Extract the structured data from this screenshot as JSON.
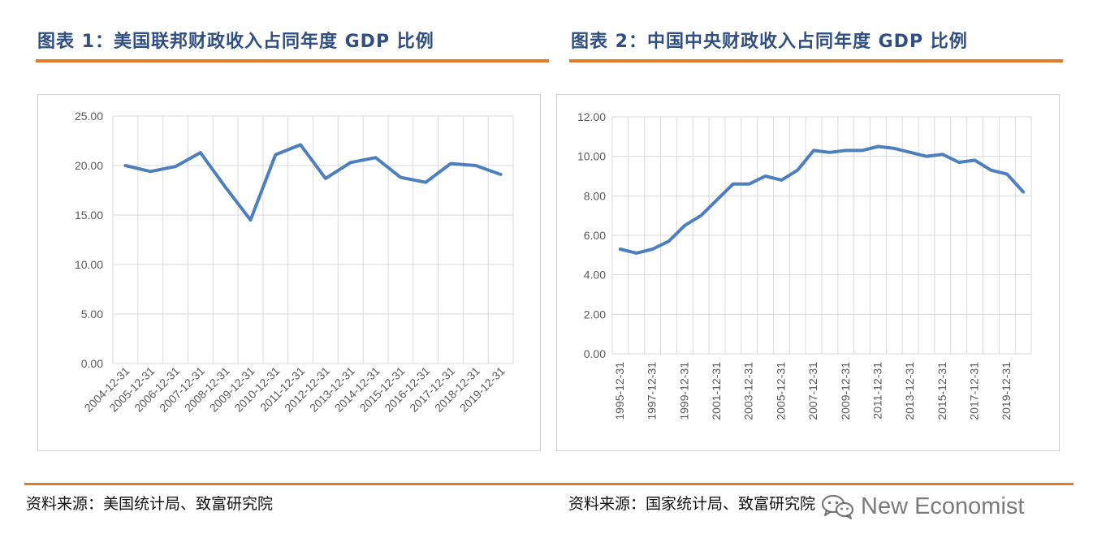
{
  "figures": [
    {
      "title": "图表 1：美国联邦财政收入占同年度 GDP 比例",
      "source": "资料来源：美国统计局、致富研究院"
    },
    {
      "title": "图表 2：中国中央财政收入占同年度 GDP 比例",
      "source": "资料来源：国家统计局、致富研究院"
    }
  ],
  "watermark": "New Economist",
  "colors": {
    "line": "#4e7fbd",
    "accent": "#e07b2c",
    "title": "#2f4f82",
    "grid": "#d9d9d9"
  },
  "chart_data": [
    {
      "type": "line",
      "title": "美国联邦财政收入占同年度 GDP 比例",
      "xlabel": "",
      "ylabel": "",
      "ylim": [
        0,
        25
      ],
      "y_ticks": [
        "0.00",
        "5.00",
        "10.00",
        "15.00",
        "20.00",
        "25.00"
      ],
      "categories": [
        "2004-12-31",
        "2005-12-31",
        "2006-12-31",
        "2007-12-31",
        "2008-12-31",
        "2009-12-31",
        "2010-12-31",
        "2011-12-31",
        "2012-12-31",
        "2013-12-31",
        "2014-12-31",
        "2015-12-31",
        "2016-12-31",
        "2017-12-31",
        "2018-12-31",
        "2019-12-31"
      ],
      "x_tick_labels": [
        "2004-12-31",
        "2005-12-31",
        "2006-12-31",
        "2007-12-31",
        "2008-12-31",
        "2009-12-31",
        "2010-12-31",
        "2011-12-31",
        "2012-12-31",
        "2013-12-31",
        "2014-12-31",
        "2015-12-31",
        "2016-12-31",
        "2017-12-31",
        "2018-12-31",
        "2019-12-31"
      ],
      "values": [
        20.0,
        19.4,
        19.9,
        21.3,
        17.8,
        14.5,
        21.1,
        22.1,
        18.7,
        20.3,
        20.8,
        18.8,
        18.3,
        20.2,
        20.0,
        19.1
      ],
      "grid": true,
      "legend": "none"
    },
    {
      "type": "line",
      "title": "中国中央财政收入占同年度 GDP 比例",
      "xlabel": "",
      "ylabel": "",
      "ylim": [
        0,
        12
      ],
      "y_ticks": [
        "0.00",
        "2.00",
        "4.00",
        "6.00",
        "8.00",
        "10.00",
        "12.00"
      ],
      "categories": [
        "1995-12-31",
        "1996-12-31",
        "1997-12-31",
        "1998-12-31",
        "1999-12-31",
        "2000-12-31",
        "2001-12-31",
        "2002-12-31",
        "2003-12-31",
        "2004-12-31",
        "2005-12-31",
        "2006-12-31",
        "2007-12-31",
        "2008-12-31",
        "2009-12-31",
        "2010-12-31",
        "2011-12-31",
        "2012-12-31",
        "2013-12-31",
        "2014-12-31",
        "2015-12-31",
        "2016-12-31",
        "2017-12-31",
        "2018-12-31",
        "2019-12-31",
        "2020-12-31"
      ],
      "x_tick_labels": [
        "1995-12-31",
        "1997-12-31",
        "1999-12-31",
        "2001-12-31",
        "2003-12-31",
        "2005-12-31",
        "2007-12-31",
        "2009-12-31",
        "2011-12-31",
        "2013-12-31",
        "2015-12-31",
        "2017-12-31",
        "2019-12-31"
      ],
      "values": [
        5.3,
        5.1,
        5.3,
        5.7,
        6.5,
        7.0,
        7.8,
        8.6,
        8.6,
        9.0,
        8.8,
        9.3,
        10.3,
        10.2,
        10.3,
        10.3,
        10.5,
        10.4,
        10.2,
        10.0,
        10.1,
        9.7,
        9.8,
        9.3,
        9.1,
        8.2
      ],
      "grid": true,
      "legend": "none"
    }
  ]
}
